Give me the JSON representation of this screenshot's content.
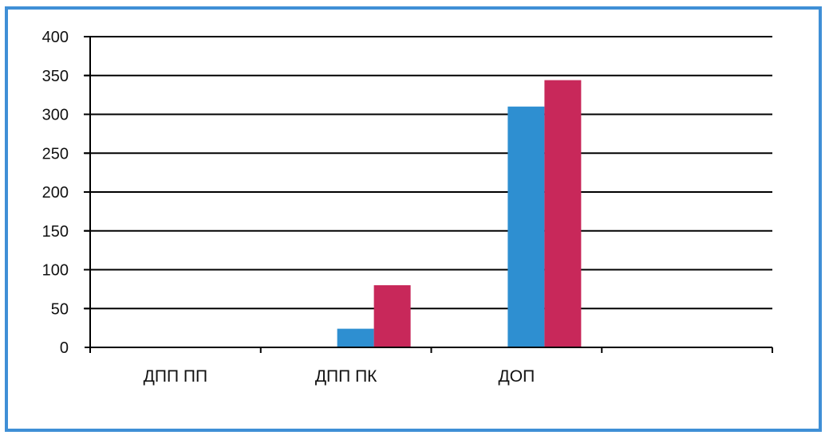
{
  "chart_data": {
    "type": "bar",
    "categories": [
      "ДПП ПП",
      "ДПП ПК",
      "ДОП",
      ""
    ],
    "series": [
      {
        "color": "#2e8fd1",
        "values": [
          0,
          24,
          310,
          0
        ]
      },
      {
        "color": "#c8285a",
        "values": [
          0,
          80,
          344,
          0
        ]
      }
    ],
    "ylim": [
      0,
      400
    ],
    "yticks": [
      0,
      50,
      100,
      150,
      200,
      250,
      300,
      350,
      400
    ],
    "grid": true,
    "title": "",
    "xlabel": "",
    "ylabel": ""
  },
  "colors": {
    "frame_border": "#3f8fd6",
    "gridline": "#000000"
  }
}
